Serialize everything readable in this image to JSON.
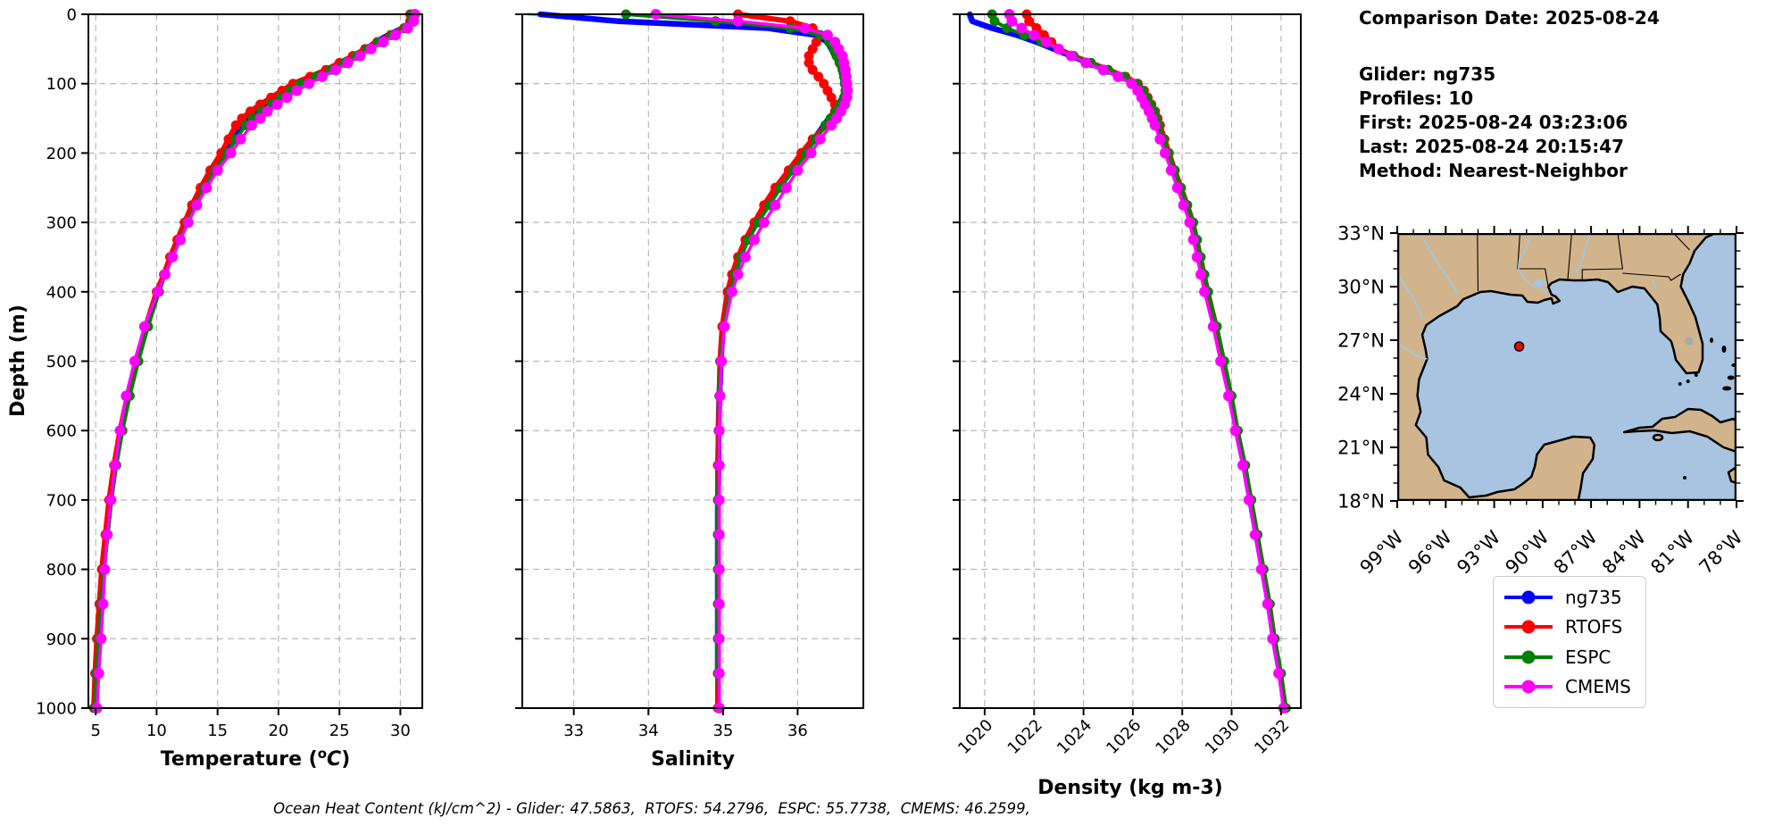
{
  "info_panel": {
    "lines": [
      "Comparison Date: 2025-08-24",
      "",
      "Glider: ng735",
      "Profiles: 10",
      "First: 2025-08-24 03:23:06",
      "Last: 2025-08-24 20:15:47",
      "Method: Nearest-Neighbor"
    ]
  },
  "footer": {
    "text": "Ocean Heat Content (kJ/cm^2) - Glider: 47.5863,  RTOFS: 54.2796,  ESPC: 55.7738,  CMEMS: 46.2599,"
  },
  "colors": {
    "ng735": "#0000ff",
    "rtofs": "#ff0000",
    "espc": "#008000",
    "cmems": "#ff00ff",
    "glider_raw": "#00ffff",
    "grid": "#b0b0b0",
    "land": "#d2b48c",
    "ocean": "#a9c4e0",
    "river": "#9ec8e8",
    "lake": "#a9a9a9",
    "map_point": "#ff0000"
  },
  "legend": {
    "items": [
      {
        "label": "ng735",
        "color": "#0000ff"
      },
      {
        "label": "RTOFS",
        "color": "#ff0000"
      },
      {
        "label": "ESPC",
        "color": "#008000"
      },
      {
        "label": "CMEMS",
        "color": "#ff00ff"
      }
    ]
  },
  "map": {
    "lat_tick_values": [
      33,
      30,
      27,
      24,
      21,
      18
    ],
    "lat_tick_labels": [
      "33°N",
      "30°N",
      "27°N",
      "24°N",
      "21°N",
      "18°N"
    ],
    "lon_tick_values": [
      99,
      96,
      93,
      90,
      87,
      84,
      81,
      78
    ],
    "lon_tick_labels": [
      "99°W",
      "96°W",
      "93°W",
      "90°W",
      "87°W",
      "84°W",
      "81°W",
      "78°W"
    ],
    "extent": {
      "lon_min": 99,
      "lon_max": 78,
      "lat_min": 18,
      "lat_max": 33
    },
    "point": {
      "lat": 26.65,
      "lon": 91.45
    }
  },
  "chart_data": [
    {
      "id": "temperature",
      "type": "line",
      "xlabel": "Temperature (°C)",
      "xlabel_parts": [
        {
          "t": "Temperature ("
        },
        {
          "t": "o",
          "sup": true
        },
        {
          "t": "C",
          "italic": true
        },
        {
          "t": ")"
        }
      ],
      "ylabel": "Depth (m)",
      "xlim": [
        4.4,
        31.8
      ],
      "ylim": [
        1000,
        0
      ],
      "xticks": [
        5,
        10,
        15,
        20,
        25,
        30
      ],
      "yticks": [
        0,
        100,
        200,
        300,
        400,
        500,
        600,
        700,
        800,
        900,
        1000
      ],
      "rotate_xticklabels": false,
      "depths": [
        0,
        10,
        20,
        30,
        40,
        50,
        60,
        70,
        80,
        90,
        100,
        110,
        120,
        130,
        140,
        150,
        160,
        180,
        200,
        225,
        250,
        275,
        300,
        325,
        350,
        375,
        400,
        450,
        500,
        550,
        600,
        650,
        700,
        750,
        800,
        850,
        900,
        950,
        1000
      ],
      "series": [
        {
          "name": "glider_raw",
          "color": "#00ffff",
          "lw": 3,
          "marker": false,
          "r": 0,
          "values": [
            31.3,
            31.2,
            30.4,
            29.1,
            28.0,
            27.1,
            26.2,
            25.2,
            24.1,
            22.8,
            21.5,
            20.7,
            19.9,
            19.1,
            18.3,
            17.6,
            17.0,
            16.2,
            15.5,
            14.5,
            13.6,
            12.9,
            12.2,
            11.6,
            11.0,
            10.5,
            10.0,
            9.1,
            8.3,
            7.6,
            7.0,
            6.5,
            6.1,
            5.8,
            5.5,
            5.3,
            5.1,
            4.95
          ]
        },
        {
          "name": "ng735",
          "color": "#0000ff",
          "lw": 6.5,
          "marker": false,
          "r": 0,
          "values": [
            30.9,
            30.9,
            30.2,
            29.0,
            28.0,
            27.2,
            26.3,
            25.3,
            24.2,
            22.9,
            21.6,
            20.8,
            20.0,
            19.2,
            18.4,
            17.7,
            17.1,
            16.3,
            15.6,
            14.6,
            13.8,
            13.1,
            12.4,
            11.8,
            11.2,
            10.6,
            10.1,
            9.2,
            8.4,
            7.7,
            7.1,
            6.6,
            6.2,
            5.9,
            5.6,
            5.4,
            5.2,
            5.0
          ]
        },
        {
          "name": "RTOFS",
          "color": "#ff0000",
          "lw": 6,
          "marker": true,
          "r": 5.5,
          "values": [
            30.8,
            30.8,
            30.3,
            29.2,
            28.1,
            27.1,
            26.1,
            25.0,
            23.9,
            22.6,
            21.2,
            20.3,
            19.4,
            18.5,
            17.7,
            17.0,
            16.5,
            15.9,
            15.3,
            14.4,
            13.6,
            12.9,
            12.3,
            11.7,
            11.1,
            10.6,
            10.0,
            9.1,
            8.3,
            7.6,
            7.0,
            6.5,
            6.1,
            5.8,
            5.5,
            5.3,
            5.1,
            4.95,
            4.85
          ]
        },
        {
          "name": "ESPC",
          "color": "#008000",
          "lw": 4,
          "marker": true,
          "r": 5.5,
          "values": [
            30.9,
            30.9,
            30.4,
            29.3,
            28.2,
            27.3,
            26.4,
            25.4,
            24.3,
            23.1,
            21.8,
            21.0,
            20.2,
            19.4,
            18.6,
            17.9,
            17.3,
            16.5,
            15.8,
            14.8,
            13.9,
            13.2,
            12.5,
            11.9,
            11.3,
            10.7,
            10.2,
            9.3,
            8.5,
            7.8,
            7.2,
            6.7,
            6.3,
            6.0,
            5.65,
            5.45,
            5.25,
            5.05,
            4.9
          ]
        },
        {
          "name": "CMEMS",
          "color": "#ff00ff",
          "lw": 3.5,
          "marker": true,
          "r": 6,
          "values": [
            31.2,
            31.1,
            30.6,
            29.6,
            28.6,
            27.6,
            26.7,
            25.7,
            24.7,
            23.6,
            22.5,
            21.5,
            20.7,
            19.9,
            19.1,
            18.5,
            17.8,
            16.9,
            16.1,
            15.0,
            14.1,
            13.3,
            12.6,
            11.95,
            11.3,
            10.7,
            10.1,
            9.0,
            8.2,
            7.5,
            7.0,
            6.6,
            6.25,
            5.95,
            5.75,
            5.6,
            5.45,
            5.25,
            5.1
          ]
        }
      ]
    },
    {
      "id": "salinity",
      "type": "line",
      "xlabel": "Salinity",
      "xlim": [
        32.31,
        36.88
      ],
      "ylim": [
        1000,
        0
      ],
      "xticks": [
        33,
        34,
        35,
        36
      ],
      "rotate_xticklabels": false,
      "depths": [
        0,
        10,
        20,
        30,
        40,
        50,
        60,
        70,
        80,
        90,
        100,
        110,
        120,
        130,
        140,
        150,
        160,
        180,
        200,
        225,
        250,
        275,
        300,
        325,
        350,
        375,
        400,
        450,
        500,
        550,
        600,
        650,
        700,
        750,
        800,
        850,
        900,
        950,
        1000
      ],
      "series": [
        {
          "name": "glider_raw",
          "color": "#00ffff",
          "lw": 3,
          "marker": false,
          "r": 0,
          "values": [
            32.4,
            33.4,
            35.5,
            36.2,
            36.38,
            36.44,
            36.5,
            36.54,
            36.57,
            36.6,
            36.62,
            36.63,
            36.61,
            36.56,
            36.5,
            36.42,
            36.34,
            36.2,
            36.08,
            35.9,
            35.73,
            35.58,
            35.43,
            35.3,
            35.2,
            35.13,
            35.06,
            34.99,
            34.96,
            34.94,
            34.93,
            34.93,
            34.92,
            34.92,
            34.92,
            34.92,
            34.92,
            34.92
          ]
        },
        {
          "name": "ng735",
          "color": "#0000ff",
          "lw": 6.5,
          "marker": false,
          "r": 0,
          "values": [
            32.55,
            33.6,
            35.6,
            36.25,
            36.4,
            36.45,
            36.5,
            36.55,
            36.58,
            36.6,
            36.62,
            36.63,
            36.6,
            36.55,
            36.5,
            36.42,
            36.35,
            36.22,
            36.1,
            35.92,
            35.75,
            35.6,
            35.45,
            35.32,
            35.22,
            35.15,
            35.08,
            35.0,
            34.97,
            34.95,
            34.94,
            34.94,
            34.93,
            34.93,
            34.93,
            34.93,
            34.93,
            34.93
          ]
        },
        {
          "name": "RTOFS",
          "color": "#ff0000",
          "lw": 6,
          "marker": true,
          "r": 5.5,
          "values": [
            35.2,
            35.9,
            36.2,
            36.3,
            36.25,
            36.2,
            36.15,
            36.15,
            36.2,
            36.28,
            36.35,
            36.4,
            36.45,
            36.5,
            36.5,
            36.45,
            36.38,
            36.2,
            36.05,
            35.88,
            35.7,
            35.55,
            35.42,
            35.3,
            35.2,
            35.12,
            35.06,
            34.99,
            34.96,
            34.95,
            34.94,
            34.93,
            34.93,
            34.93,
            34.93,
            34.93,
            34.93,
            34.93,
            34.93
          ]
        },
        {
          "name": "ESPC",
          "color": "#008000",
          "lw": 4,
          "marker": true,
          "r": 5.5,
          "values": [
            33.7,
            34.9,
            35.9,
            36.3,
            36.42,
            36.48,
            36.52,
            36.56,
            36.6,
            36.62,
            36.63,
            36.64,
            36.62,
            36.57,
            36.51,
            36.44,
            36.37,
            36.24,
            36.12,
            35.94,
            35.77,
            35.62,
            35.47,
            35.34,
            35.24,
            35.16,
            35.09,
            35.01,
            34.97,
            34.95,
            34.94,
            34.94,
            34.93,
            34.93,
            34.93,
            34.93,
            34.93,
            34.93,
            34.95
          ]
        },
        {
          "name": "CMEMS",
          "color": "#ff00ff",
          "lw": 3.5,
          "marker": true,
          "r": 6,
          "values": [
            34.1,
            35.2,
            36.1,
            36.4,
            36.5,
            36.55,
            36.6,
            36.62,
            36.64,
            36.65,
            36.66,
            36.67,
            36.66,
            36.63,
            36.58,
            36.52,
            36.45,
            36.3,
            36.18,
            36.0,
            35.85,
            35.7,
            35.55,
            35.42,
            35.3,
            35.2,
            35.12,
            35.02,
            34.98,
            34.96,
            34.95,
            34.95,
            34.95,
            34.95,
            34.95,
            34.95,
            34.95,
            34.95,
            34.95
          ]
        }
      ]
    },
    {
      "id": "density",
      "type": "line",
      "xlabel": "Density (kg m-3)",
      "xlim": [
        1018.99,
        1032.8
      ],
      "ylim": [
        1000,
        0
      ],
      "xticks": [
        1020,
        1022,
        1024,
        1026,
        1028,
        1030,
        1032
      ],
      "rotate_xticklabels": true,
      "depths": [
        0,
        10,
        20,
        30,
        40,
        50,
        60,
        70,
        80,
        90,
        100,
        110,
        120,
        130,
        140,
        150,
        160,
        180,
        200,
        225,
        250,
        275,
        300,
        325,
        350,
        375,
        400,
        450,
        500,
        550,
        600,
        650,
        700,
        750,
        800,
        850,
        900,
        950,
        1000
      ],
      "series": [
        {
          "name": "glider_raw",
          "color": "#00ffff",
          "lw": 3,
          "marker": false,
          "r": 0,
          "values": [
            1019.3,
            1019.4,
            1020.2,
            1021.2,
            1022.0,
            1022.7,
            1023.4,
            1024.1,
            1024.8,
            1025.5,
            1026.05,
            1026.3,
            1026.45,
            1026.6,
            1026.75,
            1026.85,
            1026.95,
            1027.15,
            1027.35,
            1027.6,
            1027.85,
            1028.1,
            1028.35,
            1028.5,
            1028.65,
            1028.8,
            1028.95,
            1029.3,
            1029.6,
            1029.9,
            1030.15,
            1030.45,
            1030.7,
            1030.95,
            1031.2,
            1031.45,
            1031.65,
            1031.9
          ]
        },
        {
          "name": "ng735",
          "color": "#0000ff",
          "lw": 6.5,
          "marker": false,
          "r": 0,
          "values": [
            1019.4,
            1019.5,
            1020.3,
            1021.3,
            1022.1,
            1022.8,
            1023.5,
            1024.2,
            1024.9,
            1025.6,
            1026.1,
            1026.35,
            1026.5,
            1026.65,
            1026.8,
            1026.9,
            1027.0,
            1027.2,
            1027.4,
            1027.65,
            1027.9,
            1028.15,
            1028.4,
            1028.55,
            1028.7,
            1028.85,
            1029.0,
            1029.35,
            1029.65,
            1029.95,
            1030.2,
            1030.5,
            1030.75,
            1031.0,
            1031.25,
            1031.5,
            1031.7,
            1031.95
          ]
        },
        {
          "name": "RTOFS",
          "color": "#ff0000",
          "lw": 6,
          "marker": true,
          "r": 5.5,
          "values": [
            1021.7,
            1021.8,
            1022.1,
            1022.4,
            1022.7,
            1023.0,
            1023.6,
            1024.3,
            1025.0,
            1025.7,
            1026.2,
            1026.45,
            1026.6,
            1026.75,
            1026.9,
            1027.0,
            1027.1,
            1027.28,
            1027.46,
            1027.7,
            1027.95,
            1028.2,
            1028.43,
            1028.58,
            1028.73,
            1028.88,
            1029.03,
            1029.37,
            1029.67,
            1029.97,
            1030.22,
            1030.52,
            1030.77,
            1031.02,
            1031.27,
            1031.52,
            1031.72,
            1031.97,
            1032.17
          ]
        },
        {
          "name": "ESPC",
          "color": "#008000",
          "lw": 4,
          "marker": true,
          "r": 5.5,
          "values": [
            1020.3,
            1020.4,
            1020.9,
            1021.6,
            1022.3,
            1023.0,
            1023.6,
            1024.3,
            1025.0,
            1025.65,
            1026.15,
            1026.4,
            1026.55,
            1026.7,
            1026.85,
            1026.95,
            1027.05,
            1027.25,
            1027.45,
            1027.7,
            1027.95,
            1028.2,
            1028.45,
            1028.6,
            1028.75,
            1028.9,
            1029.05,
            1029.4,
            1029.7,
            1030.0,
            1030.25,
            1030.55,
            1030.8,
            1031.05,
            1031.3,
            1031.55,
            1031.75,
            1032.0,
            1032.2
          ]
        },
        {
          "name": "CMEMS",
          "color": "#ff00ff",
          "lw": 3.5,
          "marker": true,
          "r": 6,
          "values": [
            1021.0,
            1021.1,
            1021.5,
            1022.0,
            1022.5,
            1023.0,
            1023.5,
            1024.1,
            1024.8,
            1025.4,
            1025.95,
            1026.2,
            1026.35,
            1026.5,
            1026.65,
            1026.78,
            1026.9,
            1027.1,
            1027.3,
            1027.55,
            1027.8,
            1028.05,
            1028.3,
            1028.45,
            1028.6,
            1028.75,
            1028.9,
            1029.25,
            1029.55,
            1029.87,
            1030.15,
            1030.45,
            1030.7,
            1030.95,
            1031.2,
            1031.45,
            1031.65,
            1031.9,
            1032.1
          ]
        }
      ]
    }
  ]
}
